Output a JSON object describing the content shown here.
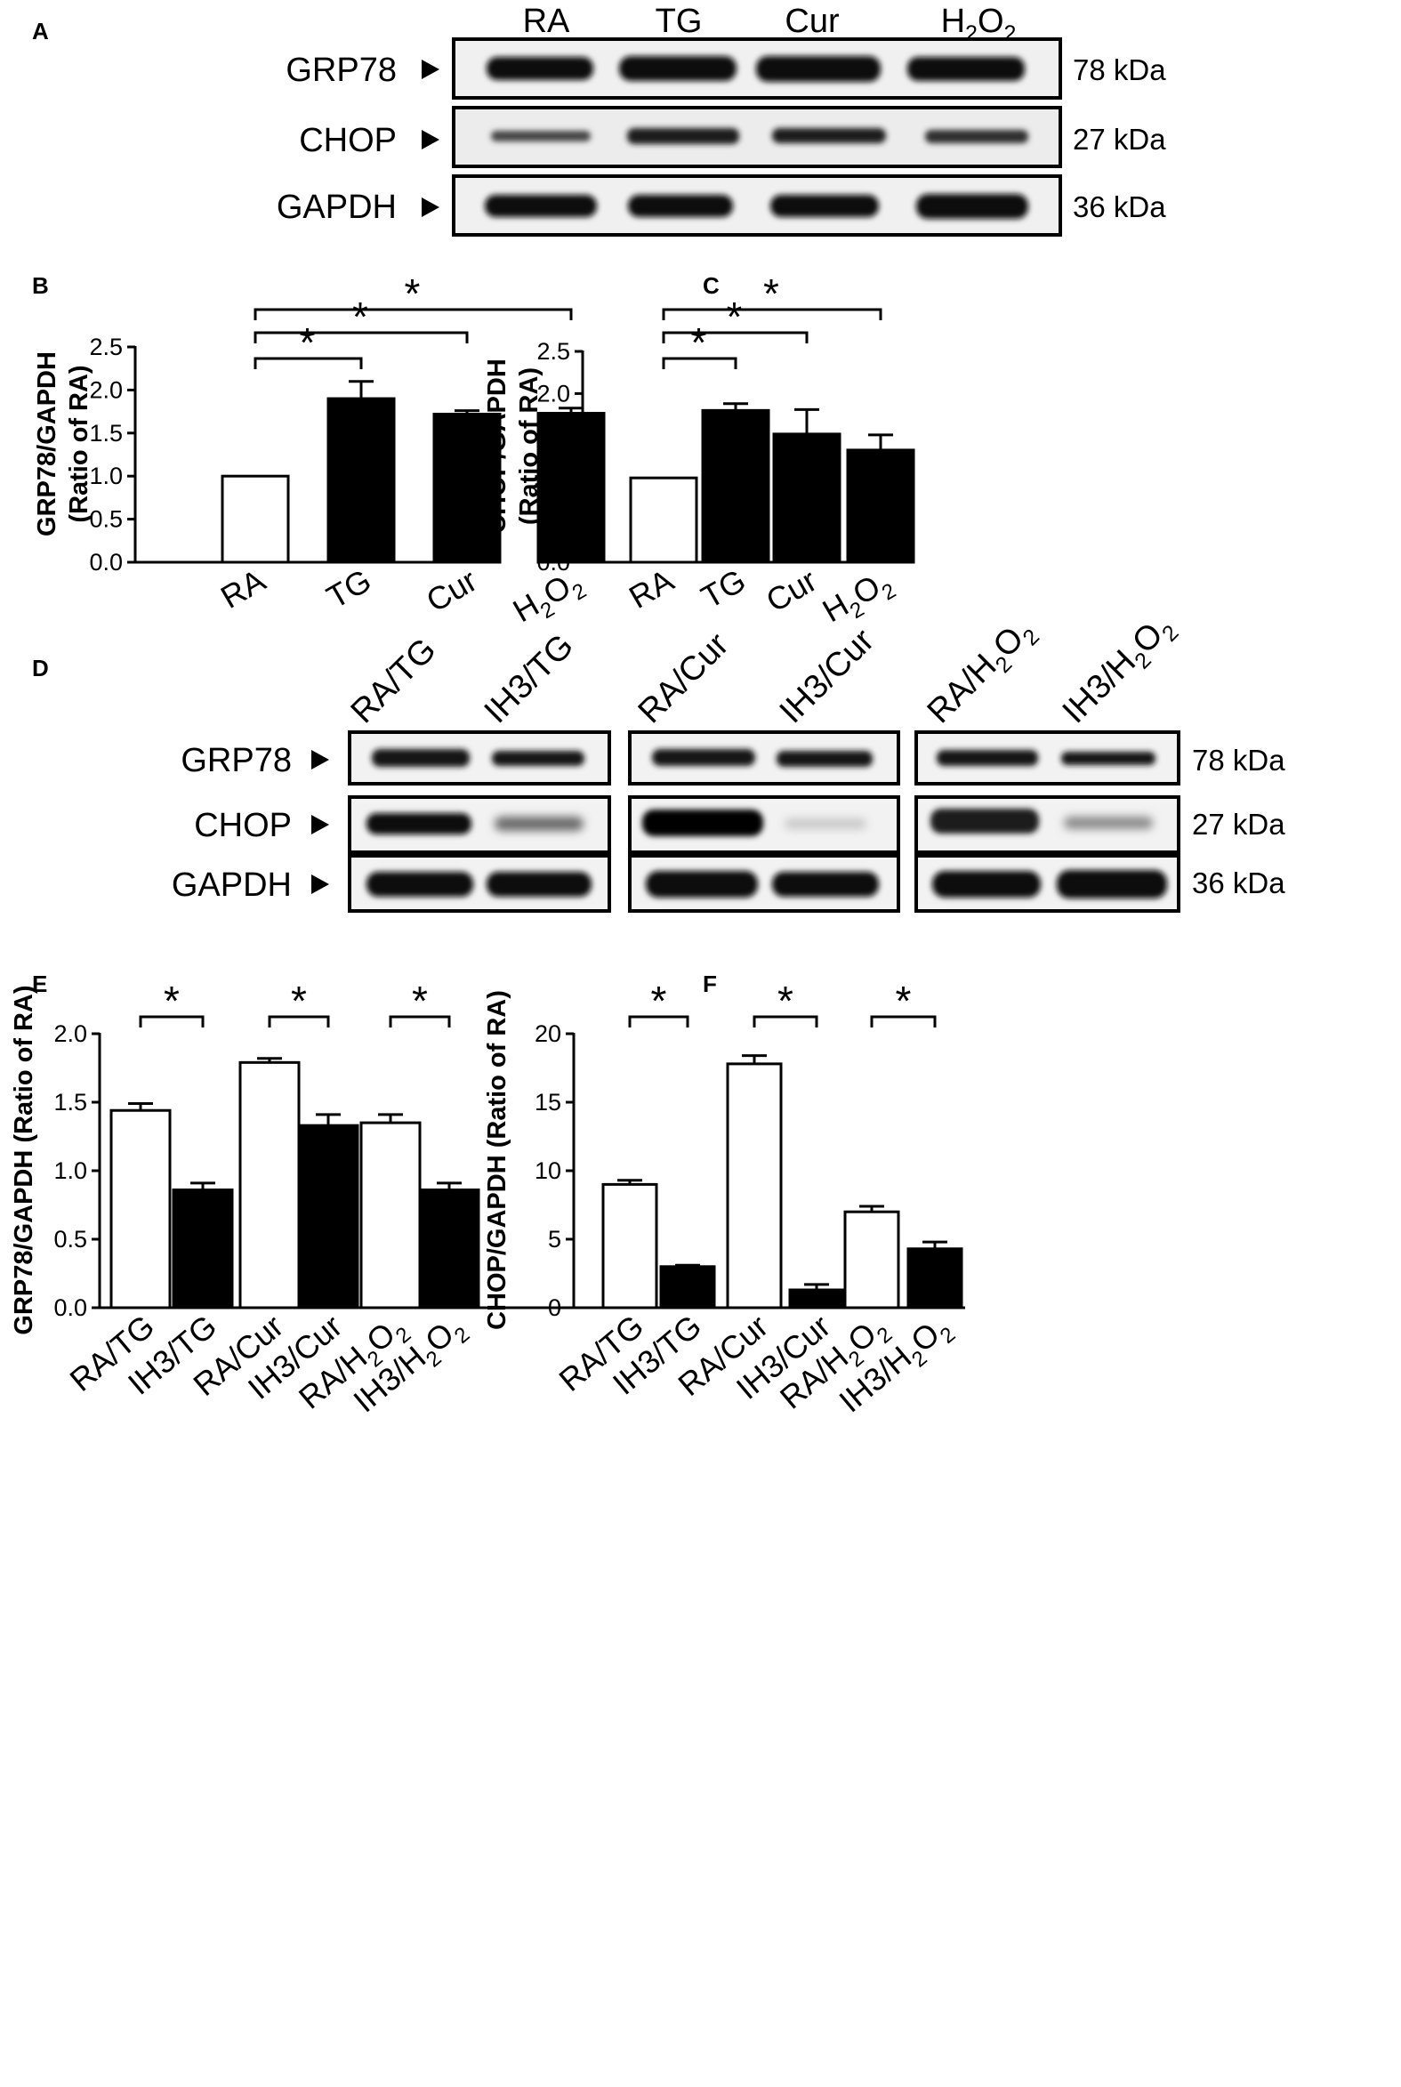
{
  "panels": {
    "a": "A",
    "b": "B",
    "c": "C",
    "d": "D",
    "e": "E",
    "f": "F"
  },
  "blot_a": {
    "lanes": [
      "RA",
      "TG",
      "Cur",
      "H2O2"
    ],
    "rows": [
      {
        "protein": "GRP78",
        "size": "78 kDa"
      },
      {
        "protein": "CHOP",
        "size": "27 kDa"
      },
      {
        "protein": "GAPDH",
        "size": "36 kDa"
      }
    ]
  },
  "blot_d": {
    "lanes": [
      "RA/TG",
      "IH3/TG",
      "RA/Cur",
      "IH3/Cur",
      "RA/H2O2",
      "IH3/H2O2"
    ],
    "rows": [
      {
        "protein": "GRP78",
        "size": "78 kDa"
      },
      {
        "protein": "CHOP",
        "size": "27 kDa"
      },
      {
        "protein": "GAPDH",
        "size": "36 kDa"
      }
    ]
  },
  "significance_mark": "*",
  "chart_data": [
    {
      "panel": "B",
      "type": "bar",
      "categories": [
        "RA",
        "TG",
        "Cur",
        "H2O2"
      ],
      "values": [
        1.0,
        1.9,
        1.72,
        1.73
      ],
      "errors": [
        0,
        0.2,
        0.04,
        0.06
      ],
      "fills": [
        "#ffffff",
        "#000000",
        "#000000",
        "#000000"
      ],
      "ylabel": "GRP78/GAPDH (Ratio of RA)",
      "ylim": [
        0,
        2.5
      ],
      "yticks": [
        "0.0",
        "0.5",
        "1.0",
        "1.5",
        "2.0",
        "2.5"
      ],
      "comparisons": [
        {
          "from": 0,
          "to": 1,
          "label": "*"
        },
        {
          "from": 0,
          "to": 2,
          "label": "*"
        },
        {
          "from": 0,
          "to": 3,
          "label": "*"
        }
      ]
    },
    {
      "panel": "C",
      "type": "bar",
      "categories": [
        "RA",
        "TG",
        "Cur",
        "H2O2"
      ],
      "values": [
        1.0,
        1.8,
        1.52,
        1.33
      ],
      "errors": [
        0,
        0.08,
        0.29,
        0.18
      ],
      "fills": [
        "#ffffff",
        "#000000",
        "#000000",
        "#000000"
      ],
      "ylabel": "CHOP/GAPDH (Ratio of RA)",
      "ylim": [
        0,
        2.5
      ],
      "yticks": [
        "0.0",
        "0.5",
        "1.0",
        "1.5",
        "2.0",
        "2.5"
      ],
      "comparisons": [
        {
          "from": 0,
          "to": 1,
          "label": "*"
        },
        {
          "from": 0,
          "to": 2,
          "label": "*"
        },
        {
          "from": 0,
          "to": 3,
          "label": "*"
        }
      ]
    },
    {
      "panel": "E",
      "type": "bar",
      "categories": [
        "RA/TG",
        "IH3/TG",
        "RA/Cur",
        "IH3/Cur",
        "RA/H2O2",
        "IH3/H2O2"
      ],
      "values": [
        1.44,
        0.86,
        1.79,
        1.33,
        1.35,
        0.86
      ],
      "errors": [
        0.05,
        0.05,
        0.03,
        0.08,
        0.06,
        0.05
      ],
      "fills": [
        "#ffffff",
        "#000000",
        "#ffffff",
        "#000000",
        "#ffffff",
        "#000000"
      ],
      "ylabel": "GRP78/GAPDH (Ratio of RA)",
      "ylim": [
        0,
        2.0
      ],
      "yticks": [
        "0.0",
        "0.5",
        "1.0",
        "1.5",
        "2.0"
      ],
      "comparisons": [
        {
          "from": 0,
          "to": 1,
          "label": "*"
        },
        {
          "from": 2,
          "to": 3,
          "label": "*"
        },
        {
          "from": 4,
          "to": 5,
          "label": "*"
        }
      ]
    },
    {
      "panel": "F",
      "type": "bar",
      "categories": [
        "RA/TG",
        "IH3/TG",
        "RA/Cur",
        "IH3/Cur",
        "RA/H2O2",
        "IH3/H2O2"
      ],
      "values": [
        9.0,
        3.0,
        17.8,
        1.3,
        7.0,
        4.3
      ],
      "errors": [
        0.3,
        0.1,
        0.6,
        0.4,
        0.4,
        0.5
      ],
      "fills": [
        "#ffffff",
        "#000000",
        "#ffffff",
        "#000000",
        "#ffffff",
        "#000000"
      ],
      "ylabel": "CHOP/GAPDH (Ratio of RA)",
      "ylim": [
        0,
        20
      ],
      "yticks": [
        "0",
        "5",
        "10",
        "15",
        "20"
      ],
      "comparisons": [
        {
          "from": 0,
          "to": 1,
          "label": "*"
        },
        {
          "from": 2,
          "to": 3,
          "label": "*"
        },
        {
          "from": 4,
          "to": 5,
          "label": "*"
        }
      ]
    }
  ]
}
